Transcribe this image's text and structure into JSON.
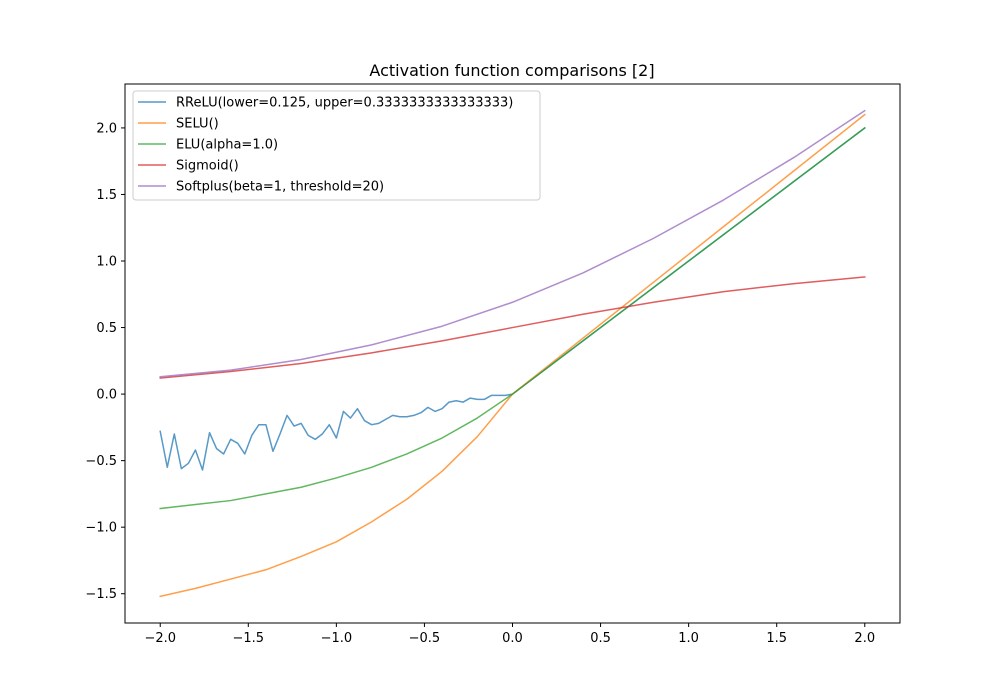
{
  "chart_data": {
    "type": "line",
    "title": "Activation function comparisons [2]",
    "xlabel": "",
    "ylabel": "",
    "xlim": [
      -2.2,
      2.2
    ],
    "ylim": [
      -1.72,
      2.33
    ],
    "xticks": [
      -2.0,
      -1.5,
      -1.0,
      -0.5,
      0.0,
      0.5,
      1.0,
      1.5,
      2.0
    ],
    "yticks": [
      -1.5,
      -1.0,
      -0.5,
      0.0,
      0.5,
      1.0,
      1.5,
      2.0
    ],
    "xtick_labels": [
      "−2.0",
      "−1.5",
      "−1.0",
      "−0.5",
      "0.0",
      "0.5",
      "1.0",
      "1.5",
      "2.0"
    ],
    "ytick_labels": [
      "−1.5",
      "−1.0",
      "−0.5",
      "0.0",
      "0.5",
      "1.0",
      "1.5",
      "2.0"
    ],
    "grid": false,
    "legend_position": "top-left",
    "series": [
      {
        "name": "RReLU(lower=0.125, upper=0.3333333333333333)",
        "color": "#1f77b4",
        "x": [
          -2.0,
          -1.96,
          -1.92,
          -1.88,
          -1.84,
          -1.8,
          -1.76,
          -1.72,
          -1.68,
          -1.64,
          -1.6,
          -1.56,
          -1.52,
          -1.48,
          -1.44,
          -1.4,
          -1.36,
          -1.32,
          -1.28,
          -1.24,
          -1.2,
          -1.16,
          -1.12,
          -1.08,
          -1.04,
          -1.0,
          -0.96,
          -0.92,
          -0.88,
          -0.84,
          -0.8,
          -0.76,
          -0.72,
          -0.68,
          -0.64,
          -0.6,
          -0.56,
          -0.52,
          -0.48,
          -0.44,
          -0.4,
          -0.36,
          -0.32,
          -0.28,
          -0.24,
          -0.2,
          -0.16,
          -0.12,
          -0.08,
          -0.04,
          0.0,
          0.04,
          0.08,
          0.12,
          0.16,
          0.2,
          0.24,
          0.28,
          0.32,
          0.36,
          0.4,
          0.44,
          0.48,
          0.52,
          0.56,
          0.6,
          0.64,
          0.68,
          0.72,
          0.76,
          0.8,
          0.84,
          0.88,
          0.92,
          0.96,
          1.0,
          1.04,
          1.08,
          1.12,
          1.16,
          1.2,
          1.24,
          1.28,
          1.32,
          1.36,
          1.4,
          1.44,
          1.48,
          1.52,
          1.56,
          1.6,
          1.64,
          1.68,
          1.72,
          1.76,
          1.8,
          1.84,
          1.88,
          1.92,
          1.96,
          2.0
        ],
        "y": [
          -0.28,
          -0.55,
          -0.3,
          -0.56,
          -0.52,
          -0.42,
          -0.57,
          -0.29,
          -0.41,
          -0.45,
          -0.34,
          -0.37,
          -0.45,
          -0.31,
          -0.23,
          -0.23,
          -0.43,
          -0.3,
          -0.16,
          -0.24,
          -0.22,
          -0.31,
          -0.34,
          -0.3,
          -0.23,
          -0.33,
          -0.13,
          -0.18,
          -0.11,
          -0.2,
          -0.23,
          -0.22,
          -0.19,
          -0.16,
          -0.17,
          -0.17,
          -0.16,
          -0.14,
          -0.1,
          -0.13,
          -0.11,
          -0.06,
          -0.05,
          -0.06,
          -0.03,
          -0.04,
          -0.04,
          -0.01,
          -0.01,
          -0.01,
          0.0,
          0.04,
          0.08,
          0.12,
          0.16,
          0.2,
          0.24,
          0.28,
          0.32,
          0.36,
          0.4,
          0.44,
          0.48,
          0.52,
          0.56,
          0.6,
          0.64,
          0.68,
          0.72,
          0.76,
          0.8,
          0.84,
          0.88,
          0.92,
          0.96,
          1.0,
          1.04,
          1.08,
          1.12,
          1.16,
          1.2,
          1.24,
          1.28,
          1.32,
          1.36,
          1.4,
          1.44,
          1.48,
          1.52,
          1.56,
          1.6,
          1.64,
          1.68,
          1.72,
          1.76,
          1.8,
          1.84,
          1.88,
          1.92,
          1.96,
          2.0
        ]
      },
      {
        "name": "SELU()",
        "color": "#ff7f0e",
        "x": [
          -2.0,
          -1.8,
          -1.6,
          -1.4,
          -1.2,
          -1.0,
          -0.8,
          -0.6,
          -0.4,
          -0.2,
          0.0,
          0.4,
          0.8,
          1.2,
          1.6,
          2.0
        ],
        "y": [
          -1.52,
          -1.46,
          -1.39,
          -1.32,
          -1.22,
          -1.11,
          -0.96,
          -0.79,
          -0.58,
          -0.32,
          0.0,
          0.42,
          0.84,
          1.26,
          1.68,
          2.1
        ]
      },
      {
        "name": "ELU(alpha=1.0)",
        "color": "#2ca02c",
        "x": [
          -2.0,
          -1.8,
          -1.6,
          -1.4,
          -1.2,
          -1.0,
          -0.8,
          -0.6,
          -0.4,
          -0.2,
          0.0,
          0.4,
          0.8,
          1.2,
          1.6,
          2.0
        ],
        "y": [
          -0.86,
          -0.83,
          -0.8,
          -0.75,
          -0.7,
          -0.63,
          -0.55,
          -0.45,
          -0.33,
          -0.18,
          0.0,
          0.4,
          0.8,
          1.2,
          1.6,
          2.0
        ]
      },
      {
        "name": "Sigmoid()",
        "color": "#d62728",
        "x": [
          -2.0,
          -1.6,
          -1.2,
          -0.8,
          -0.4,
          0.0,
          0.4,
          0.8,
          1.2,
          1.6,
          2.0
        ],
        "y": [
          0.12,
          0.17,
          0.23,
          0.31,
          0.4,
          0.5,
          0.6,
          0.69,
          0.77,
          0.83,
          0.88
        ]
      },
      {
        "name": "Softplus(beta=1, threshold=20)",
        "color": "#9467bd",
        "x": [
          -2.0,
          -1.6,
          -1.2,
          -0.8,
          -0.4,
          0.0,
          0.4,
          0.8,
          1.2,
          1.6,
          2.0
        ],
        "y": [
          0.13,
          0.18,
          0.26,
          0.37,
          0.51,
          0.69,
          0.91,
          1.17,
          1.46,
          1.78,
          2.13
        ]
      }
    ]
  }
}
